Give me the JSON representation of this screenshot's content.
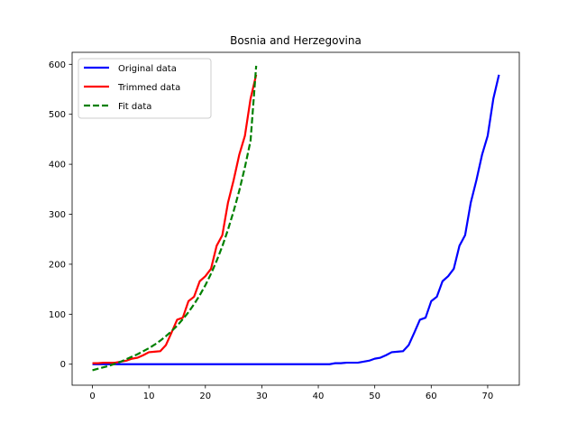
{
  "chart_data": {
    "type": "line",
    "title": "Bosnia and Herzegovina",
    "xlabel": "",
    "ylabel": "",
    "xlim": [
      -3.6,
      75.6
    ],
    "ylim": [
      -42,
      624
    ],
    "xticks": [
      0,
      10,
      20,
      30,
      40,
      50,
      60,
      70
    ],
    "yticks": [
      0,
      100,
      200,
      300,
      400,
      500,
      600
    ],
    "grid": false,
    "legend_position": "top-left",
    "series": [
      {
        "name": "Original data",
        "color": "#0000ff",
        "style": "solid",
        "x": [
          0,
          1,
          2,
          3,
          4,
          5,
          6,
          7,
          8,
          9,
          10,
          11,
          12,
          13,
          14,
          15,
          16,
          17,
          18,
          19,
          20,
          21,
          22,
          23,
          24,
          25,
          26,
          27,
          28,
          29,
          30,
          31,
          32,
          33,
          34,
          35,
          36,
          37,
          38,
          39,
          40,
          41,
          42,
          43,
          44,
          45,
          46,
          47,
          48,
          49,
          50,
          51,
          52,
          53,
          54,
          55,
          56,
          57,
          58,
          59,
          60,
          61,
          62,
          63,
          64,
          65,
          66,
          67,
          68,
          69,
          70,
          71,
          72
        ],
        "y": [
          0,
          0,
          0,
          0,
          0,
          0,
          0,
          0,
          0,
          0,
          0,
          0,
          0,
          0,
          0,
          0,
          0,
          0,
          0,
          0,
          0,
          0,
          0,
          0,
          0,
          0,
          0,
          0,
          0,
          0,
          0,
          0,
          0,
          0,
          0,
          0,
          0,
          0,
          0,
          0,
          0,
          0,
          0,
          2,
          2,
          3,
          3,
          3,
          5,
          7,
          11,
          13,
          18,
          24,
          25,
          26,
          38,
          63,
          89,
          93,
          126,
          135,
          166,
          176,
          191,
          237,
          258,
          323,
          368,
          419,
          457,
          531,
          579
        ]
      },
      {
        "name": "Trimmed data",
        "color": "#ff0000",
        "style": "solid",
        "x": [
          0,
          1,
          2,
          3,
          4,
          5,
          6,
          7,
          8,
          9,
          10,
          11,
          12,
          13,
          14,
          15,
          16,
          17,
          18,
          19,
          20,
          21,
          22,
          23,
          24,
          25,
          26,
          27,
          28,
          29
        ],
        "y": [
          2,
          2,
          3,
          3,
          3,
          5,
          7,
          11,
          13,
          18,
          24,
          25,
          26,
          38,
          63,
          89,
          93,
          126,
          135,
          166,
          176,
          191,
          237,
          258,
          323,
          368,
          419,
          457,
          531,
          579
        ]
      },
      {
        "name": "Fit data",
        "color": "#008000",
        "style": "dashed",
        "x": [
          0,
          1,
          2,
          3,
          4,
          5,
          6,
          7,
          8,
          9,
          10,
          11,
          12,
          13,
          14,
          15,
          16,
          17,
          18,
          19,
          20,
          21,
          22,
          23,
          24,
          25,
          26,
          27,
          28,
          29
        ],
        "y": [
          -12,
          -9,
          -6,
          -3,
          1,
          5,
          10,
          15,
          20,
          26,
          32,
          39,
          47,
          56,
          66,
          77,
          90,
          104,
          120,
          138,
          158,
          181,
          207,
          236,
          269,
          306,
          347,
          394,
          447,
          597
        ]
      }
    ]
  }
}
